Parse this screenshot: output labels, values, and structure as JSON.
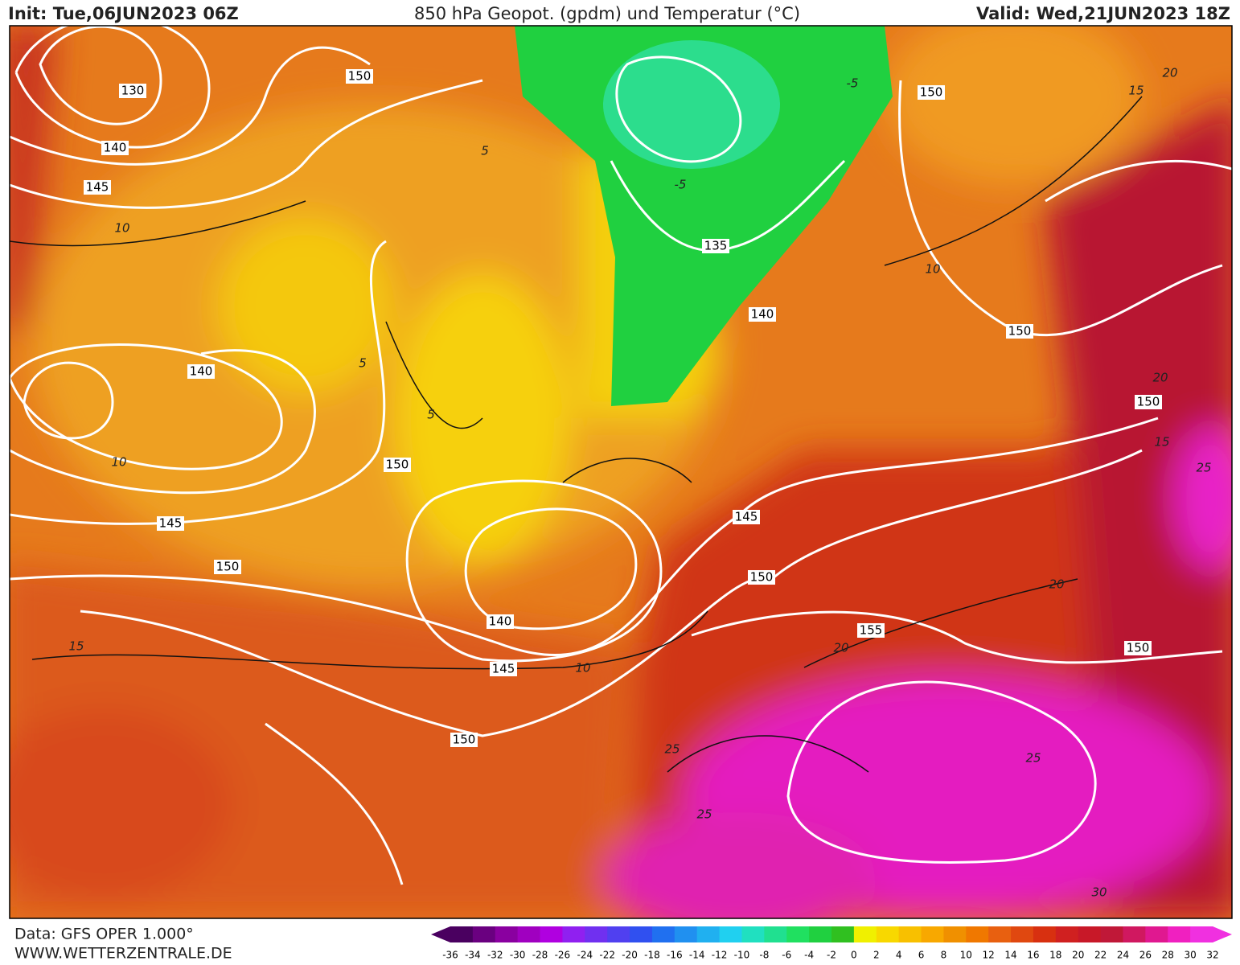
{
  "header": {
    "init": "Init: Tue,06JUN2023 06Z",
    "title": "850 hPa Geopot. (gpdm) und Temperatur (°C)",
    "valid": "Valid: Wed,21JUN2023 18Z"
  },
  "contour_labels": {
    "geopotential": [
      130,
      140,
      145,
      150,
      150,
      140,
      135,
      140,
      150,
      150,
      150,
      145,
      145,
      150,
      150,
      140,
      145,
      155,
      150,
      150
    ],
    "temperature": [
      10,
      5,
      -5,
      -5,
      5,
      5,
      10,
      10,
      10,
      15,
      15,
      20,
      20,
      15,
      25,
      20,
      20,
      25,
      25,
      25,
      30
    ]
  },
  "colorbar": {
    "labels": [
      -36,
      -34,
      -32,
      -30,
      -28,
      -26,
      -24,
      -22,
      -20,
      -18,
      -16,
      -14,
      -12,
      -10,
      -8,
      -6,
      -4,
      -2,
      0,
      2,
      4,
      6,
      8,
      10,
      12,
      14,
      16,
      18,
      20,
      22,
      24,
      26,
      28,
      30,
      32
    ],
    "colors": [
      "#4a0060",
      "#6a0080",
      "#8a00a0",
      "#a000c0",
      "#b000e0",
      "#9020f0",
      "#7030f0",
      "#5040f0",
      "#3050f0",
      "#2070f0",
      "#2090f0",
      "#20b0f0",
      "#20d0f0",
      "#20e0c0",
      "#20e090",
      "#20e060",
      "#20d040",
      "#30c020",
      "#f0f000",
      "#f8d800",
      "#f8c000",
      "#f8a800",
      "#f09000",
      "#f07800",
      "#e86010",
      "#e04810",
      "#d83010",
      "#d02020",
      "#c81828",
      "#c01838",
      "#d01860",
      "#e01890",
      "#f020c0",
      "#f030e0"
    ]
  },
  "footer": {
    "data": "Data: GFS OPER 1.000°",
    "site": "WWW.WETTERZENTRALE.DE"
  }
}
